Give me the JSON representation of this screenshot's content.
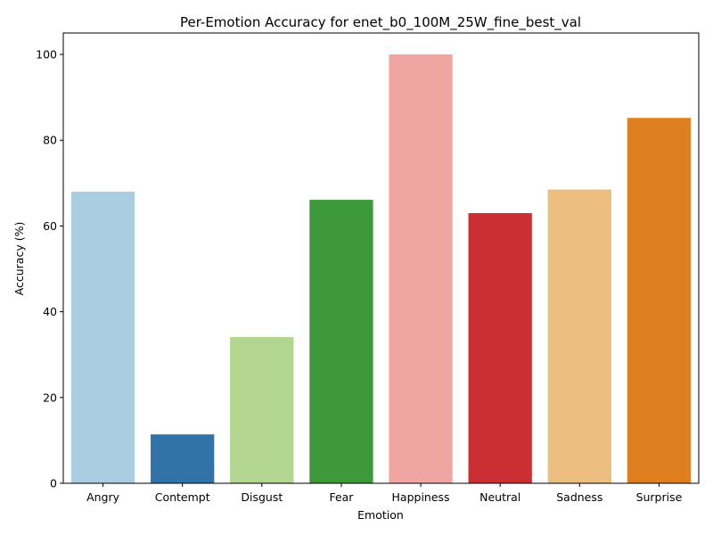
{
  "chart_data": {
    "type": "bar",
    "title": "Per-Emotion Accuracy for enet_b0_100M_25W_fine_best_val",
    "xlabel": "Emotion",
    "ylabel": "Accuracy (%)",
    "categories": [
      "Angry",
      "Contempt",
      "Disgust",
      "Fear",
      "Happiness",
      "Neutral",
      "Sadness",
      "Surprise"
    ],
    "values": [
      68.0,
      11.4,
      34.1,
      66.1,
      100.0,
      63.0,
      68.5,
      85.2
    ],
    "colors": [
      "#abcde1",
      "#3173a8",
      "#b2d58f",
      "#3d993a",
      "#f0a5a3",
      "#cb2f33",
      "#ecbe80",
      "#e07f20"
    ],
    "ylim": [
      0,
      105
    ],
    "yticks": [
      0,
      20,
      40,
      60,
      80,
      100
    ],
    "grid": false,
    "legend": false
  }
}
